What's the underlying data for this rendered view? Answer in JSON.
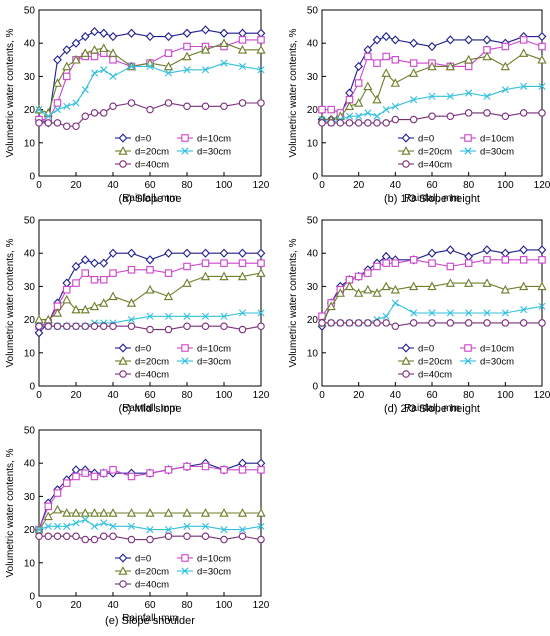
{
  "series_styles": [
    {
      "color": "#1f1f8f",
      "marker": "diamond"
    },
    {
      "color": "#cc44cc",
      "marker": "square"
    },
    {
      "color": "#6b7f2a",
      "marker": "triangle"
    },
    {
      "color": "#33c0dd",
      "marker": "x"
    },
    {
      "color": "#7a2f7a",
      "marker": "circle"
    }
  ],
  "chart_data": [
    {
      "type": "line",
      "caption": "(a) Slope toe",
      "xlabel": "Rainfall, mm",
      "ylabel": "Volumetric water contents, %",
      "xlim": [
        0,
        120
      ],
      "ylim": [
        0,
        50
      ],
      "xticks": [
        0,
        20,
        40,
        60,
        80,
        100,
        120
      ],
      "yticks": [
        0,
        10,
        20,
        30,
        40,
        50
      ],
      "legend": [
        "d=0",
        "d=10cm",
        "d=20cm",
        "d=30cm",
        "d=40cm"
      ],
      "series": [
        {
          "name": "d=0",
          "x": [
            0,
            5,
            10,
            15,
            20,
            25,
            30,
            35,
            40,
            50,
            60,
            70,
            80,
            90,
            100,
            110,
            120
          ],
          "values": [
            17,
            16,
            35,
            38,
            40,
            42,
            43.5,
            43,
            42,
            43,
            42,
            42,
            43,
            44,
            43,
            43,
            43
          ]
        },
        {
          "name": "d=10cm",
          "x": [
            0,
            5,
            10,
            15,
            20,
            25,
            30,
            35,
            40,
            50,
            60,
            70,
            80,
            90,
            100,
            110,
            120
          ],
          "values": [
            17,
            17,
            22,
            30,
            35,
            36,
            36,
            37,
            35,
            33,
            34,
            37,
            39,
            39,
            39,
            41,
            41
          ]
        },
        {
          "name": "d=20cm",
          "x": [
            0,
            5,
            10,
            15,
            20,
            25,
            30,
            35,
            40,
            50,
            60,
            70,
            80,
            90,
            100,
            110,
            120
          ],
          "values": [
            20,
            19,
            28,
            33,
            35,
            37,
            38,
            38.5,
            37,
            33,
            34,
            33,
            36,
            38,
            40,
            38,
            38
          ]
        },
        {
          "name": "d=30cm",
          "x": [
            0,
            5,
            10,
            15,
            20,
            25,
            30,
            35,
            40,
            50,
            60,
            70,
            80,
            90,
            100,
            110,
            120
          ],
          "values": [
            20,
            18,
            20,
            21,
            22,
            26,
            31,
            32,
            30,
            33,
            33,
            31,
            32,
            32,
            34,
            33,
            32
          ]
        },
        {
          "name": "d=40cm",
          "x": [
            0,
            5,
            10,
            15,
            20,
            25,
            30,
            35,
            40,
            50,
            60,
            70,
            80,
            90,
            100,
            110,
            120
          ],
          "values": [
            16,
            16,
            16,
            15,
            15,
            18,
            19,
            19,
            21,
            22,
            20,
            22,
            21,
            21,
            21,
            22,
            22
          ]
        }
      ]
    },
    {
      "type": "line",
      "caption": "(b) 1/3 Slope height",
      "xlabel": "Rainfall, mm",
      "ylabel": "Volumetric water contents, %",
      "xlim": [
        0,
        120
      ],
      "ylim": [
        0,
        50
      ],
      "xticks": [
        0,
        20,
        40,
        60,
        80,
        100,
        120
      ],
      "yticks": [
        0,
        10,
        20,
        30,
        40,
        50
      ],
      "legend": [
        "d=0",
        "d=10cm",
        "d=20cm",
        "d=30cm",
        "d=40cm"
      ],
      "series": [
        {
          "name": "d=0",
          "x": [
            0,
            5,
            10,
            15,
            20,
            25,
            30,
            35,
            40,
            50,
            60,
            70,
            80,
            90,
            100,
            110,
            120
          ],
          "values": [
            17,
            17,
            18,
            25,
            33,
            38,
            41,
            42,
            41,
            40,
            39,
            41,
            41,
            41,
            40,
            42,
            42
          ]
        },
        {
          "name": "d=10cm",
          "x": [
            0,
            5,
            10,
            15,
            20,
            25,
            30,
            35,
            40,
            50,
            60,
            70,
            80,
            90,
            100,
            110,
            120
          ],
          "values": [
            20,
            20,
            19,
            23,
            28,
            36,
            34,
            36,
            35,
            34,
            34,
            33,
            33,
            38,
            39,
            41,
            39
          ]
        },
        {
          "name": "d=20cm",
          "x": [
            0,
            5,
            10,
            15,
            20,
            25,
            30,
            35,
            40,
            50,
            60,
            70,
            80,
            90,
            100,
            110,
            120
          ],
          "values": [
            17,
            17,
            18,
            21,
            22,
            27,
            23,
            31,
            28,
            31,
            33,
            33,
            35,
            36,
            33,
            37,
            35
          ]
        },
        {
          "name": "d=30cm",
          "x": [
            0,
            5,
            10,
            15,
            20,
            25,
            30,
            35,
            40,
            50,
            60,
            70,
            80,
            90,
            100,
            110,
            120
          ],
          "values": [
            17,
            16,
            17,
            18,
            18,
            19,
            18,
            20,
            21,
            23,
            24,
            24,
            25,
            24,
            26,
            27,
            27
          ]
        },
        {
          "name": "d=40cm",
          "x": [
            0,
            5,
            10,
            15,
            20,
            25,
            30,
            35,
            40,
            50,
            60,
            70,
            80,
            90,
            100,
            110,
            120
          ],
          "values": [
            16,
            16,
            16,
            16,
            16,
            16,
            16,
            16,
            17,
            17,
            18,
            18,
            19,
            19,
            18,
            19,
            19
          ]
        }
      ]
    },
    {
      "type": "line",
      "caption": "(c) Mid slope",
      "xlabel": "Rainfall, mm",
      "ylabel": "Volumetric water contents, %",
      "xlim": [
        0,
        120
      ],
      "ylim": [
        0,
        50
      ],
      "xticks": [
        0,
        20,
        40,
        60,
        80,
        100,
        120
      ],
      "yticks": [
        0,
        10,
        20,
        30,
        40,
        50
      ],
      "legend": [
        "d=0",
        "d=10cm",
        "d=20cm",
        "d=30cm",
        "d=40cm"
      ],
      "series": [
        {
          "name": "d=0",
          "x": [
            0,
            5,
            10,
            15,
            20,
            25,
            30,
            35,
            40,
            50,
            60,
            70,
            80,
            90,
            100,
            110,
            120
          ],
          "values": [
            16,
            19,
            25,
            31,
            36,
            38,
            37,
            37,
            40,
            40,
            38,
            40,
            40,
            40,
            40,
            40,
            40
          ]
        },
        {
          "name": "d=10cm",
          "x": [
            0,
            5,
            10,
            15,
            20,
            25,
            30,
            35,
            40,
            50,
            60,
            70,
            80,
            90,
            100,
            110,
            120
          ],
          "values": [
            18,
            19,
            24,
            29,
            31,
            34,
            32,
            32,
            34,
            35,
            35,
            34,
            36,
            37,
            37,
            37,
            37
          ]
        },
        {
          "name": "d=20cm",
          "x": [
            0,
            5,
            10,
            15,
            20,
            25,
            30,
            35,
            40,
            50,
            60,
            70,
            80,
            90,
            100,
            110,
            120
          ],
          "values": [
            20,
            20,
            22,
            26,
            23,
            23,
            24,
            25,
            27,
            25,
            29,
            27,
            31,
            33,
            33,
            33,
            34
          ]
        },
        {
          "name": "d=30cm",
          "x": [
            0,
            5,
            10,
            15,
            20,
            25,
            30,
            35,
            40,
            50,
            60,
            70,
            80,
            90,
            100,
            110,
            120
          ],
          "values": [
            18,
            18,
            18,
            18,
            18,
            18,
            19,
            19,
            19,
            20,
            21,
            21,
            21,
            21,
            21,
            22,
            22
          ]
        },
        {
          "name": "d=40cm",
          "x": [
            0,
            5,
            10,
            15,
            20,
            25,
            30,
            35,
            40,
            50,
            60,
            70,
            80,
            90,
            100,
            110,
            120
          ],
          "values": [
            18,
            18,
            18,
            18,
            18,
            18,
            18,
            18,
            18,
            18,
            17,
            17,
            18,
            18,
            18,
            17,
            18
          ]
        }
      ]
    },
    {
      "type": "line",
      "caption": "(d) 2/3 Slope height",
      "xlabel": "Rainfall, mm",
      "ylabel": "Volumetric water contents, %",
      "xlim": [
        0,
        120
      ],
      "ylim": [
        0,
        50
      ],
      "xticks": [
        0,
        20,
        40,
        60,
        80,
        100,
        120
      ],
      "yticks": [
        0,
        10,
        20,
        30,
        40,
        50
      ],
      "legend": [
        "d=0",
        "d=10cm",
        "d=20cm",
        "d=30cm",
        "d=40cm"
      ],
      "series": [
        {
          "name": "d=0",
          "x": [
            0,
            5,
            10,
            15,
            20,
            25,
            30,
            35,
            40,
            50,
            60,
            70,
            80,
            90,
            100,
            110,
            120
          ],
          "values": [
            18,
            25,
            30,
            32,
            33,
            35,
            37,
            39,
            38,
            38,
            40,
            41,
            39,
            41,
            40,
            41,
            41
          ]
        },
        {
          "name": "d=10cm",
          "x": [
            0,
            5,
            10,
            15,
            20,
            25,
            30,
            35,
            40,
            50,
            60,
            70,
            80,
            90,
            100,
            110,
            120
          ],
          "values": [
            21,
            25,
            29,
            32,
            33,
            34,
            36,
            37,
            37,
            38,
            37,
            36,
            37,
            38,
            38,
            38,
            38
          ]
        },
        {
          "name": "d=20cm",
          "x": [
            0,
            5,
            10,
            15,
            20,
            25,
            30,
            35,
            40,
            50,
            60,
            70,
            80,
            90,
            100,
            110,
            120
          ],
          "values": [
            19,
            24,
            28,
            30,
            28,
            29,
            28,
            30,
            29,
            30,
            30,
            31,
            31,
            31,
            29,
            30,
            30
          ]
        },
        {
          "name": "d=30cm",
          "x": [
            0,
            5,
            10,
            15,
            20,
            25,
            30,
            35,
            40,
            50,
            60,
            70,
            80,
            90,
            100,
            110,
            120
          ],
          "values": [
            19,
            19,
            19,
            19,
            19,
            19,
            20,
            21,
            25,
            22,
            22,
            22,
            22,
            22,
            22,
            23,
            24
          ]
        },
        {
          "name": "d=40cm",
          "x": [
            0,
            5,
            10,
            15,
            20,
            25,
            30,
            35,
            40,
            50,
            60,
            70,
            80,
            90,
            100,
            110,
            120
          ],
          "values": [
            19,
            19,
            19,
            19,
            19,
            19,
            19,
            19,
            18,
            19,
            19,
            19,
            19,
            19,
            19,
            19,
            19
          ]
        }
      ]
    },
    {
      "type": "line",
      "caption": "(e) Slope shoulder",
      "xlabel": "Rainfall, mm",
      "ylabel": "Volumetric water contents, %",
      "xlim": [
        0,
        120
      ],
      "ylim": [
        0,
        50
      ],
      "xticks": [
        0,
        20,
        40,
        60,
        80,
        100,
        120
      ],
      "yticks": [
        0,
        10,
        20,
        30,
        40,
        50
      ],
      "legend": [
        "d=0",
        "d=10cm",
        "d=20cm",
        "d=30cm",
        "d=40cm"
      ],
      "series": [
        {
          "name": "d=0",
          "x": [
            0,
            5,
            10,
            15,
            20,
            25,
            30,
            35,
            40,
            50,
            60,
            70,
            80,
            90,
            100,
            110,
            120
          ],
          "values": [
            20,
            28,
            32,
            35,
            38,
            38,
            37,
            37,
            37,
            37,
            37,
            38,
            39,
            40,
            38,
            40,
            40
          ]
        },
        {
          "name": "d=10cm",
          "x": [
            0,
            5,
            10,
            15,
            20,
            25,
            30,
            35,
            40,
            50,
            60,
            70,
            80,
            90,
            100,
            110,
            120
          ],
          "values": [
            20,
            27,
            31,
            34,
            36,
            37,
            36,
            37,
            38,
            36,
            37,
            38,
            39,
            39,
            38,
            38,
            38
          ]
        },
        {
          "name": "d=20cm",
          "x": [
            0,
            5,
            10,
            15,
            20,
            25,
            30,
            35,
            40,
            50,
            60,
            70,
            80,
            90,
            100,
            110,
            120
          ],
          "values": [
            20,
            24,
            26,
            25,
            25,
            25,
            25,
            25,
            25,
            25,
            25,
            25,
            25,
            25,
            25,
            25,
            25
          ]
        },
        {
          "name": "d=30cm",
          "x": [
            0,
            5,
            10,
            15,
            20,
            25,
            30,
            35,
            40,
            50,
            60,
            70,
            80,
            90,
            100,
            110,
            120
          ],
          "values": [
            20,
            21,
            21,
            21,
            22,
            23,
            21,
            22,
            21,
            21,
            20,
            20,
            21,
            21,
            20,
            20,
            21
          ]
        },
        {
          "name": "d=40cm",
          "x": [
            0,
            5,
            10,
            15,
            20,
            25,
            30,
            35,
            40,
            50,
            60,
            70,
            80,
            90,
            100,
            110,
            120
          ],
          "values": [
            18,
            18,
            18,
            18,
            18,
            17,
            17,
            18,
            18,
            17,
            17,
            18,
            18,
            18,
            17,
            18,
            17
          ]
        }
      ]
    }
  ]
}
